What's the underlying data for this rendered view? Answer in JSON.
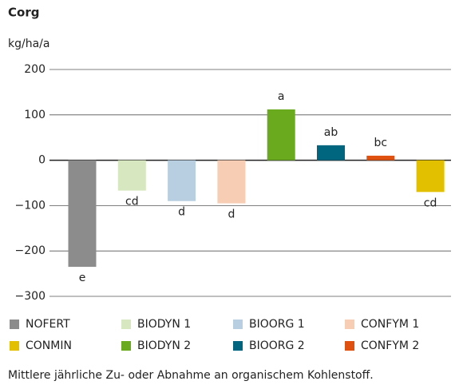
{
  "chart_data": {
    "type": "bar",
    "title": "Corg",
    "y_label": "kg/ha/a",
    "categories": [
      "NOFERT",
      "BIODYN 1",
      "BIOORG 1",
      "CONFYM 1",
      "BIODYN 2",
      "BIOORG 2",
      "CONFYM 2",
      "CONMIN"
    ],
    "values": [
      -235,
      -67,
      -90,
      -95,
      112,
      33,
      10,
      -70
    ],
    "colors": [
      "#8c8c8c",
      "#d7e8c0",
      "#b7cfe0",
      "#f7cdb3",
      "#6aaa1e",
      "#006680",
      "#e0500f",
      "#e2c000"
    ],
    "annotations": [
      "e",
      "cd",
      "d",
      "d",
      "a",
      "ab",
      "bc",
      "cd"
    ],
    "ylim": [
      -300,
      200
    ],
    "yticks": [
      200,
      100,
      0,
      {
        "value": -100,
        "label": "−100"
      },
      {
        "value": -200,
        "label": "−200"
      },
      {
        "value": -300,
        "label": "−300"
      }
    ],
    "grid": true,
    "caption": "Mittlere jährliche Zu- oder Abnahme an organischem Kohlenstoff."
  }
}
